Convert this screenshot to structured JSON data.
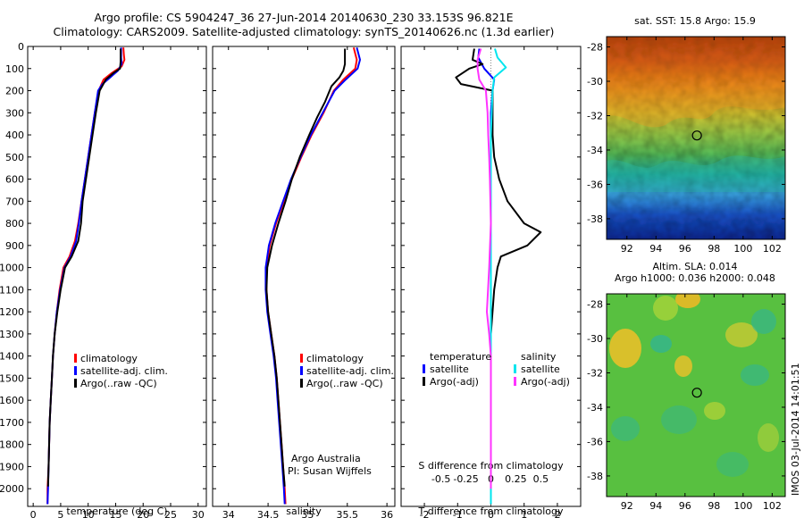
{
  "header": {
    "title_line1": "Argo profile: CS 5904247_36 27-Jun-2014 20140630_230 33.153S 96.821E",
    "title_line2": "Climatology: CARS2009. Satellite-adjusted climatology: synTS_20140626.nc (1.3d earlier)"
  },
  "map_panels": {
    "sst_title": "sat. SST: 15.8 Argo: 15.9",
    "sla_title_line1": "Altim. SLA: 0.014",
    "sla_title_line2": "Argo h1000: 0.036 h2000: 0.048",
    "lon_ticks": [
      "92",
      "94",
      "96",
      "98",
      "100",
      "102"
    ],
    "lat_ticks": [
      "-28",
      "-30",
      "-32",
      "-34",
      "-36",
      "-38"
    ],
    "lon_values": [
      92,
      94,
      96,
      98,
      100,
      102
    ],
    "lat_values": [
      -28,
      -30,
      -32,
      -34,
      -36,
      -38
    ],
    "lon_range": [
      90.6,
      102.9
    ],
    "lat_range": [
      -39.2,
      -27.4
    ],
    "argo_position": {
      "lon": 96.821,
      "lat": -33.153
    }
  },
  "footer": {
    "stamp": "IMOS 03-Jul-2014 14:01:51",
    "institution": "Argo Australia",
    "pi": "PI: Susan Wijffels"
  },
  "colors": {
    "climatology": "#ff0000",
    "satellite": "#0000ff",
    "argo": "#000000",
    "sal_satellite": "#00e5ee",
    "sal_argo": "#ff33ff"
  },
  "chart_data": [
    {
      "type": "line",
      "xlabel": "temperature (deg C)",
      "ylabel": "",
      "xlim": [
        -1,
        31.5
      ],
      "ylim": [
        2080,
        0
      ],
      "xticks": [
        "0",
        "5",
        "10",
        "15",
        "20",
        "25",
        "30"
      ],
      "xtick_values": [
        0,
        5,
        10,
        15,
        20,
        25,
        30
      ],
      "yticks": [
        "0",
        "100",
        "200",
        "300",
        "400",
        "500",
        "600",
        "700",
        "800",
        "900",
        "1000",
        "1100",
        "1200",
        "1300",
        "1400",
        "1500",
        "1600",
        "1700",
        "1800",
        "1900",
        "2000"
      ],
      "ytick_values": [
        0,
        100,
        200,
        300,
        400,
        500,
        600,
        700,
        800,
        900,
        1000,
        1100,
        1200,
        1300,
        1400,
        1500,
        1600,
        1700,
        1800,
        1900,
        2000
      ],
      "legend": [
        "climatology",
        "satellite-adj. clim.",
        "Argo(..raw -QC)"
      ],
      "legend_position": "lower-middle",
      "series": [
        {
          "name": "climatology",
          "color": "#ff0000",
          "points": [
            [
              16.4,
              5
            ],
            [
              16.5,
              40
            ],
            [
              16.6,
              60
            ],
            [
              16.1,
              90
            ],
            [
              14.3,
              120
            ],
            [
              12.8,
              150
            ],
            [
              11.9,
              200
            ],
            [
              11.2,
              300
            ],
            [
              10.6,
              400
            ],
            [
              10.0,
              500
            ],
            [
              9.4,
              600
            ],
            [
              8.8,
              700
            ],
            [
              8.2,
              800
            ],
            [
              7.6,
              880
            ],
            [
              6.6,
              950
            ],
            [
              5.5,
              1000
            ],
            [
              4.8,
              1100
            ],
            [
              4.3,
              1200
            ],
            [
              3.9,
              1300
            ],
            [
              3.6,
              1400
            ],
            [
              3.4,
              1500
            ],
            [
              3.2,
              1600
            ],
            [
              3.0,
              1700
            ],
            [
              2.9,
              1800
            ],
            [
              2.8,
              1900
            ],
            [
              2.6,
              2000
            ],
            [
              2.6,
              2070
            ]
          ]
        },
        {
          "name": "satellite-adj. clim.",
          "color": "#0000ff",
          "points": [
            [
              16.0,
              5
            ],
            [
              16.0,
              50
            ],
            [
              16.1,
              80
            ],
            [
              15.4,
              110
            ],
            [
              14.0,
              140
            ],
            [
              12.6,
              170
            ],
            [
              11.8,
              200
            ],
            [
              11.2,
              300
            ],
            [
              10.6,
              400
            ],
            [
              10.0,
              500
            ],
            [
              9.4,
              600
            ],
            [
              8.8,
              700
            ],
            [
              8.3,
              800
            ],
            [
              7.8,
              880
            ],
            [
              6.8,
              950
            ],
            [
              5.7,
              1000
            ],
            [
              4.9,
              1100
            ],
            [
              4.3,
              1200
            ],
            [
              3.9,
              1300
            ],
            [
              3.6,
              1400
            ],
            [
              3.4,
              1500
            ],
            [
              3.2,
              1600
            ],
            [
              3.0,
              1700
            ],
            [
              2.9,
              1800
            ],
            [
              2.8,
              1900
            ],
            [
              2.7,
              2000
            ],
            [
              2.6,
              2070
            ]
          ]
        },
        {
          "name": "Argo(..raw -QC)",
          "color": "#000000",
          "points": [
            [
              15.9,
              10
            ],
            [
              15.9,
              70
            ],
            [
              15.8,
              100
            ],
            [
              14.6,
              120
            ],
            [
              13.2,
              150
            ],
            [
              12.1,
              200
            ],
            [
              11.4,
              300
            ],
            [
              10.8,
              400
            ],
            [
              10.2,
              500
            ],
            [
              9.6,
              600
            ],
            [
              9.0,
              700
            ],
            [
              8.7,
              800
            ],
            [
              8.2,
              880
            ],
            [
              7.0,
              950
            ],
            [
              5.8,
              1000
            ],
            [
              5.0,
              1100
            ],
            [
              4.4,
              1200
            ],
            [
              3.9,
              1300
            ],
            [
              3.6,
              1400
            ],
            [
              3.4,
              1500
            ],
            [
              3.2,
              1600
            ],
            [
              3.0,
              1700
            ],
            [
              2.9,
              1800
            ],
            [
              2.8,
              1900
            ],
            [
              2.7,
              1990
            ]
          ]
        }
      ]
    },
    {
      "type": "line",
      "xlabel": "salinity",
      "ylabel": "",
      "xlim": [
        33.8,
        36.1
      ],
      "ylim": [
        2080,
        0
      ],
      "xticks": [
        "34",
        "34.5",
        "35",
        "35.5",
        "36"
      ],
      "xtick_values": [
        34,
        34.5,
        35,
        35.5,
        36
      ],
      "legend": [
        "climatology",
        "satellite-adj. clim.",
        "Argo(..raw -QC)"
      ],
      "legend_position": "lower-middle",
      "series": [
        {
          "name": "climatology",
          "color": "#ff0000",
          "points": [
            [
              35.58,
              5
            ],
            [
              35.62,
              60
            ],
            [
              35.6,
              100
            ],
            [
              35.45,
              150
            ],
            [
              35.33,
              200
            ],
            [
              35.2,
              300
            ],
            [
              35.05,
              400
            ],
            [
              34.92,
              500
            ],
            [
              34.8,
              600
            ],
            [
              34.7,
              700
            ],
            [
              34.6,
              800
            ],
            [
              34.52,
              900
            ],
            [
              34.48,
              1000
            ],
            [
              34.48,
              1100
            ],
            [
              34.5,
              1200
            ],
            [
              34.54,
              1300
            ],
            [
              34.58,
              1400
            ],
            [
              34.61,
              1500
            ],
            [
              34.63,
              1600
            ],
            [
              34.65,
              1700
            ],
            [
              34.67,
              1800
            ],
            [
              34.69,
              1900
            ],
            [
              34.71,
              2000
            ],
            [
              34.72,
              2070
            ]
          ]
        },
        {
          "name": "satellite-adj. clim.",
          "color": "#0000ff",
          "points": [
            [
              35.62,
              5
            ],
            [
              35.66,
              60
            ],
            [
              35.63,
              100
            ],
            [
              35.48,
              150
            ],
            [
              35.34,
              200
            ],
            [
              35.19,
              300
            ],
            [
              35.04,
              400
            ],
            [
              34.91,
              500
            ],
            [
              34.79,
              600
            ],
            [
              34.69,
              700
            ],
            [
              34.59,
              800
            ],
            [
              34.51,
              900
            ],
            [
              34.47,
              1000
            ],
            [
              34.47,
              1100
            ],
            [
              34.49,
              1200
            ],
            [
              34.53,
              1300
            ],
            [
              34.57,
              1400
            ],
            [
              34.6,
              1500
            ],
            [
              34.62,
              1600
            ],
            [
              34.64,
              1700
            ],
            [
              34.66,
              1800
            ],
            [
              34.68,
              1900
            ],
            [
              34.7,
              2000
            ],
            [
              34.71,
              2070
            ]
          ]
        },
        {
          "name": "Argo(..raw -QC)",
          "color": "#000000",
          "points": [
            [
              35.47,
              10
            ],
            [
              35.47,
              80
            ],
            [
              35.45,
              110
            ],
            [
              35.4,
              140
            ],
            [
              35.3,
              180
            ],
            [
              35.22,
              250
            ],
            [
              35.12,
              320
            ],
            [
              35.02,
              400
            ],
            [
              34.9,
              500
            ],
            [
              34.8,
              600
            ],
            [
              34.72,
              700
            ],
            [
              34.63,
              800
            ],
            [
              34.55,
              900
            ],
            [
              34.49,
              1000
            ],
            [
              34.48,
              1100
            ],
            [
              34.5,
              1200
            ],
            [
              34.54,
              1300
            ],
            [
              34.58,
              1400
            ],
            [
              34.61,
              1500
            ],
            [
              34.63,
              1600
            ],
            [
              34.65,
              1700
            ],
            [
              34.67,
              1800
            ],
            [
              34.69,
              1900
            ],
            [
              34.71,
              1990
            ]
          ]
        }
      ]
    },
    {
      "type": "line",
      "xlabel": "T difference from climatology",
      "ylabel": "",
      "top_axis_label": "S difference from climatology",
      "xlim": [
        -2.7,
        2.7
      ],
      "ylim": [
        2080,
        0
      ],
      "xticks": [
        "-2",
        "-1",
        "0",
        "1",
        "2"
      ],
      "xtick_values": [
        -2,
        -1,
        0,
        1,
        2
      ],
      "sticks": [
        "-0.5",
        "-0.25",
        "0",
        "0.25",
        "0.5"
      ],
      "stick_values": [
        -1.5,
        -0.75,
        0,
        0.75,
        1.5
      ],
      "legend_groups": [
        {
          "heading": "temperature",
          "entries": [
            "satellite",
            "Argo(-adj)"
          ]
        },
        {
          "heading": "salinity",
          "entries": [
            "satellite",
            "Argo(-adj)"
          ]
        }
      ],
      "legend_position": "lower-middle",
      "series": [
        {
          "name": "satellite",
          "group": "temperature",
          "color": "#0000ff",
          "points": [
            [
              -0.35,
              10
            ],
            [
              -0.38,
              50
            ],
            [
              -0.2,
              100
            ],
            [
              0.1,
              150
            ],
            [
              0.05,
              200
            ],
            [
              0.0,
              300
            ],
            [
              0.0,
              600
            ],
            [
              0.0,
              2070
            ]
          ]
        },
        {
          "name": "Argo(-adj)",
          "group": "temperature",
          "color": "#000000",
          "points": [
            [
              -0.5,
              10
            ],
            [
              -0.55,
              60
            ],
            [
              -0.25,
              80
            ],
            [
              -0.65,
              100
            ],
            [
              -1.05,
              140
            ],
            [
              -0.9,
              170
            ],
            [
              0.05,
              200
            ],
            [
              0.05,
              400
            ],
            [
              0.1,
              500
            ],
            [
              0.25,
              600
            ],
            [
              0.5,
              700
            ],
            [
              1.0,
              800
            ],
            [
              1.5,
              840
            ],
            [
              1.1,
              900
            ],
            [
              0.3,
              950
            ],
            [
              0.2,
              1000
            ],
            [
              0.1,
              1100
            ],
            [
              0.0,
              1300
            ],
            [
              0.0,
              2000
            ]
          ]
        },
        {
          "name": "satellite",
          "group": "salinity",
          "color": "#00e5ee",
          "points": [
            [
              0.12,
              10
            ],
            [
              0.2,
              50
            ],
            [
              0.45,
              95
            ],
            [
              0.1,
              140
            ],
            [
              0.05,
              200
            ],
            [
              0.0,
              400
            ],
            [
              0.0,
              800
            ],
            [
              0.0,
              2070
            ]
          ]
        },
        {
          "name": "Argo(-adj)",
          "group": "salinity",
          "color": "#ff33ff",
          "points": [
            [
              -0.3,
              10
            ],
            [
              -0.4,
              60
            ],
            [
              -0.4,
              100
            ],
            [
              -0.35,
              150
            ],
            [
              -0.15,
              200
            ],
            [
              -0.1,
              300
            ],
            [
              -0.08,
              400
            ],
            [
              -0.05,
              500
            ],
            [
              -0.03,
              600
            ],
            [
              0.0,
              800
            ],
            [
              -0.05,
              1000
            ],
            [
              -0.12,
              1200
            ],
            [
              -0.05,
              1300
            ],
            [
              0.0,
              1400
            ],
            [
              0.0,
              2000
            ]
          ]
        }
      ]
    }
  ]
}
